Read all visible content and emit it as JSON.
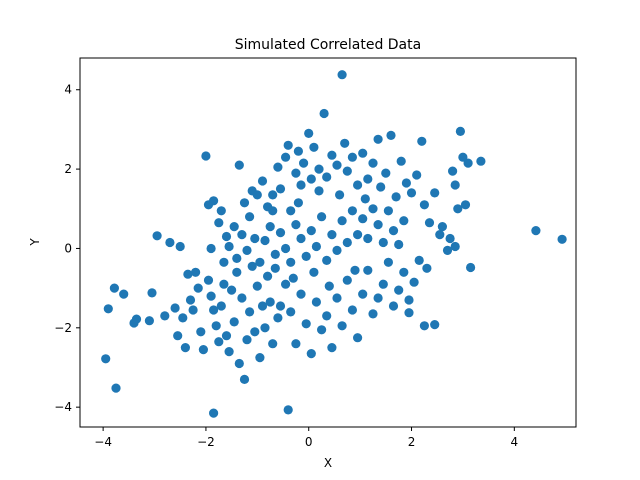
{
  "chart_data": {
    "type": "scatter",
    "title": "Simulated Correlated Data",
    "xlabel": "X",
    "ylabel": "Y",
    "xlim": [
      -4.45,
      5.2
    ],
    "ylim": [
      -4.5,
      4.8
    ],
    "xticks": [
      -4,
      -2,
      0,
      2,
      4
    ],
    "yticks": [
      -4,
      -2,
      0,
      2,
      4
    ],
    "grid": false,
    "marker_color": "#1f77b4",
    "series": [
      {
        "points": [
          [
            -3.95,
            -2.78
          ],
          [
            -3.9,
            -1.52
          ],
          [
            -3.78,
            -1.0
          ],
          [
            -3.75,
            -3.52
          ],
          [
            -3.6,
            -1.15
          ],
          [
            -3.4,
            -1.88
          ],
          [
            -3.35,
            -1.78
          ],
          [
            -3.1,
            -1.82
          ],
          [
            -3.05,
            -1.12
          ],
          [
            -2.95,
            0.32
          ],
          [
            -2.8,
            -1.7
          ],
          [
            -2.7,
            0.15
          ],
          [
            -2.6,
            -1.5
          ],
          [
            -2.55,
            -2.2
          ],
          [
            -2.5,
            0.05
          ],
          [
            -2.45,
            -1.75
          ],
          [
            -2.4,
            -2.5
          ],
          [
            -2.3,
            -1.3
          ],
          [
            -2.25,
            -1.55
          ],
          [
            -2.2,
            -0.6
          ],
          [
            -2.1,
            -2.1
          ],
          [
            -2.05,
            -2.55
          ],
          [
            -1.95,
            -0.8
          ],
          [
            -1.9,
            -1.2
          ],
          [
            -1.85,
            -1.55
          ],
          [
            -1.8,
            -1.95
          ],
          [
            -1.75,
            -2.35
          ],
          [
            -1.7,
            -1.45
          ],
          [
            -1.65,
            -0.35
          ],
          [
            -1.6,
            -2.2
          ],
          [
            -1.55,
            -2.6
          ],
          [
            -1.5,
            -1.05
          ],
          [
            -1.45,
            -1.85
          ],
          [
            -1.4,
            -0.6
          ],
          [
            -1.35,
            -2.9
          ],
          [
            -1.3,
            -1.25
          ],
          [
            -1.25,
            -3.3
          ],
          [
            -1.2,
            -2.3
          ],
          [
            -1.15,
            -1.6
          ],
          [
            -1.1,
            -0.45
          ],
          [
            -1.05,
            -2.1
          ],
          [
            -1.0,
            -0.95
          ],
          [
            -0.95,
            -2.75
          ],
          [
            -0.9,
            -1.45
          ],
          [
            -0.85,
            -2.0
          ],
          [
            -0.8,
            -0.7
          ],
          [
            -0.75,
            -1.35
          ],
          [
            -0.7,
            -2.4
          ],
          [
            -0.65,
            -0.15
          ],
          [
            -0.6,
            -1.75
          ],
          [
            -2.0,
            2.33
          ],
          [
            -1.95,
            1.1
          ],
          [
            -1.85,
            1.2
          ],
          [
            -1.75,
            0.65
          ],
          [
            -1.7,
            0.95
          ],
          [
            -1.6,
            0.3
          ],
          [
            -1.45,
            0.55
          ],
          [
            -1.35,
            2.1
          ],
          [
            -1.25,
            1.15
          ],
          [
            -1.15,
            0.8
          ],
          [
            -1.1,
            1.45
          ],
          [
            -1.0,
            1.35
          ],
          [
            -0.9,
            1.7
          ],
          [
            -0.8,
            1.05
          ],
          [
            -0.7,
            1.35
          ],
          [
            -0.6,
            2.05
          ],
          [
            -0.55,
            1.5
          ],
          [
            -0.45,
            2.3
          ],
          [
            -0.4,
            2.6
          ],
          [
            -0.35,
            0.95
          ],
          [
            -0.25,
            1.9
          ],
          [
            -0.2,
            2.45
          ],
          [
            -0.15,
            1.6
          ],
          [
            -0.1,
            2.15
          ],
          [
            0.0,
            2.9
          ],
          [
            0.05,
            1.75
          ],
          [
            0.1,
            2.55
          ],
          [
            0.2,
            2.0
          ],
          [
            0.3,
            3.4
          ],
          [
            0.35,
            1.8
          ],
          [
            0.45,
            2.35
          ],
          [
            0.55,
            2.1
          ],
          [
            0.65,
            4.38
          ],
          [
            0.7,
            2.65
          ],
          [
            0.75,
            1.95
          ],
          [
            0.85,
            2.3
          ],
          [
            0.95,
            1.6
          ],
          [
            1.05,
            2.4
          ],
          [
            1.15,
            1.75
          ],
          [
            1.25,
            2.15
          ],
          [
            1.35,
            2.75
          ],
          [
            1.4,
            1.55
          ],
          [
            1.5,
            1.9
          ],
          [
            1.6,
            2.85
          ],
          [
            1.7,
            1.3
          ],
          [
            1.8,
            2.2
          ],
          [
            1.9,
            1.65
          ],
          [
            2.0,
            1.4
          ],
          [
            2.1,
            1.85
          ],
          [
            2.2,
            2.7
          ],
          [
            2.25,
            1.1
          ],
          [
            2.35,
            0.65
          ],
          [
            2.45,
            1.4
          ],
          [
            2.55,
            0.35
          ],
          [
            2.6,
            0.55
          ],
          [
            2.7,
            -0.05
          ],
          [
            2.75,
            0.25
          ],
          [
            2.8,
            1.95
          ],
          [
            2.85,
            1.6
          ],
          [
            2.9,
            1.0
          ],
          [
            2.95,
            2.95
          ],
          [
            3.05,
            1.1
          ],
          [
            3.1,
            2.15
          ],
          [
            3.15,
            -0.48
          ],
          [
            3.35,
            2.2
          ],
          [
            3.0,
            2.3
          ],
          [
            2.85,
            0.05
          ],
          [
            2.3,
            -0.5
          ],
          [
            2.15,
            -0.3
          ],
          [
            2.05,
            -0.85
          ],
          [
            1.95,
            -1.3
          ],
          [
            1.85,
            -0.6
          ],
          [
            1.75,
            -1.05
          ],
          [
            1.65,
            -1.45
          ],
          [
            1.55,
            -0.35
          ],
          [
            1.45,
            -0.9
          ],
          [
            1.35,
            -1.25
          ],
          [
            1.25,
            -1.65
          ],
          [
            1.15,
            -0.55
          ],
          [
            1.05,
            -1.15
          ],
          [
            0.95,
            -2.25
          ],
          [
            0.85,
            -1.55
          ],
          [
            0.75,
            -0.8
          ],
          [
            0.65,
            -1.95
          ],
          [
            0.55,
            -1.25
          ],
          [
            0.45,
            -2.5
          ],
          [
            0.35,
            -1.7
          ],
          [
            0.25,
            -2.05
          ],
          [
            0.15,
            -1.35
          ],
          [
            0.05,
            -2.65
          ],
          [
            -0.05,
            -1.9
          ],
          [
            -0.15,
            -1.15
          ],
          [
            -0.25,
            -2.4
          ],
          [
            -0.35,
            -1.6
          ],
          [
            -0.45,
            -0.9
          ],
          [
            -0.55,
            -1.45
          ],
          [
            -0.4,
            -4.07
          ],
          [
            -1.85,
            -4.15
          ],
          [
            2.45,
            -1.92
          ],
          [
            4.42,
            0.45
          ],
          [
            4.93,
            0.23
          ],
          [
            1.95,
            -1.62
          ],
          [
            2.25,
            -1.95
          ],
          [
            1.85,
            0.7
          ],
          [
            1.55,
            0.95
          ],
          [
            1.75,
            0.1
          ],
          [
            1.65,
            0.45
          ],
          [
            1.45,
            0.15
          ],
          [
            1.35,
            0.6
          ],
          [
            1.25,
            1.0
          ],
          [
            -1.55,
            0.05
          ],
          [
            -1.4,
            -0.25
          ],
          [
            -1.3,
            0.35
          ],
          [
            -1.2,
            -0.05
          ],
          [
            -1.05,
            0.25
          ],
          [
            -0.95,
            -0.35
          ],
          [
            -0.85,
            0.2
          ],
          [
            -0.75,
            0.55
          ],
          [
            -0.65,
            -0.5
          ],
          [
            -0.55,
            0.4
          ],
          [
            -0.45,
            0.0
          ],
          [
            -0.35,
            -0.35
          ],
          [
            -0.25,
            0.6
          ],
          [
            -0.15,
            0.25
          ],
          [
            -0.05,
            -0.2
          ],
          [
            0.05,
            0.45
          ],
          [
            0.15,
            0.05
          ],
          [
            0.25,
            0.8
          ],
          [
            0.35,
            -0.3
          ],
          [
            0.45,
            0.35
          ],
          [
            0.55,
            -0.05
          ],
          [
            0.65,
            0.7
          ],
          [
            0.75,
            0.15
          ],
          [
            0.85,
            0.95
          ],
          [
            0.95,
            0.35
          ],
          [
            1.05,
            0.75
          ],
          [
            1.15,
            0.25
          ],
          [
            -0.3,
            -0.75
          ],
          [
            0.1,
            -0.6
          ],
          [
            0.4,
            -0.95
          ],
          [
            -2.15,
            -1.0
          ],
          [
            -1.65,
            -0.9
          ],
          [
            -1.9,
            0.0
          ],
          [
            -2.35,
            -0.65
          ],
          [
            -0.2,
            1.15
          ],
          [
            0.6,
            1.35
          ],
          [
            0.9,
            -0.55
          ],
          [
            -0.7,
            0.95
          ],
          [
            0.2,
            1.45
          ],
          [
            1.1,
            1.25
          ]
        ]
      }
    ]
  }
}
